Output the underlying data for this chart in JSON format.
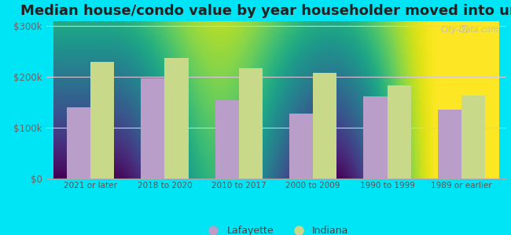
{
  "title": "Median house/condo value by year householder moved into unit",
  "categories": [
    "2021 or later",
    "2018 to 2020",
    "2010 to 2017",
    "2000 to 2009",
    "1990 to 1999",
    "1989 or earlier"
  ],
  "lafayette_values": [
    140000,
    198000,
    155000,
    128000,
    162000,
    135000
  ],
  "indiana_values": [
    230000,
    238000,
    218000,
    208000,
    183000,
    163000
  ],
  "lafayette_color": "#b89ec8",
  "indiana_color": "#c8d98a",
  "background_outer": "#00e5f5",
  "ylim": [
    0,
    310000
  ],
  "yticks": [
    0,
    100000,
    200000,
    300000
  ],
  "ytick_labels": [
    "$0",
    "$100k",
    "$200k",
    "$300k"
  ],
  "legend_lafayette": "Lafayette",
  "legend_indiana": "Indiana",
  "bar_width": 0.32,
  "grid_color": "#d8c8d8",
  "title_fontsize": 13,
  "watermark": "City-Data.com"
}
